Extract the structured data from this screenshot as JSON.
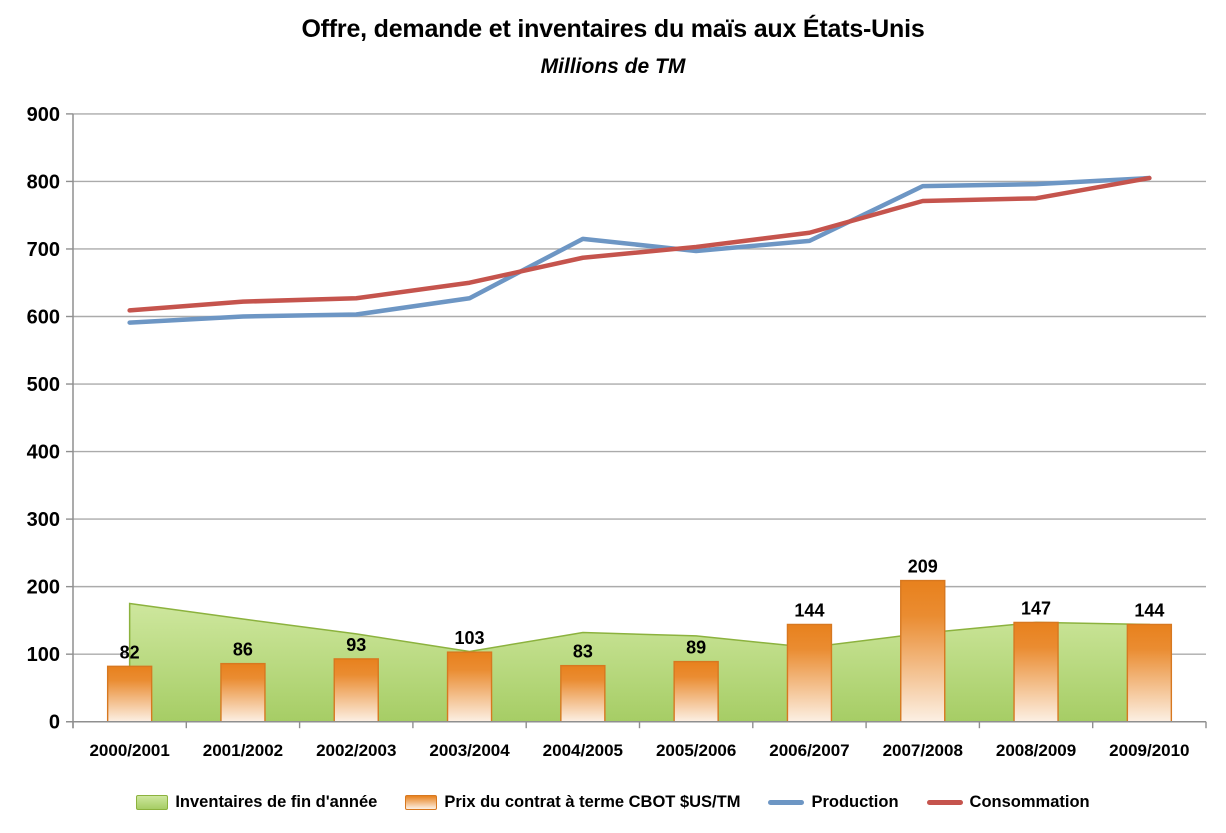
{
  "header": {
    "title": "Offre, demande et inventaires du maïs aux États-Unis",
    "subtitle": "Millions de TM"
  },
  "chart_data": {
    "type": "combo",
    "categories": [
      "2000/2001",
      "2001/2002",
      "2002/2003",
      "2003/2004",
      "2004/2005",
      "2005/2006",
      "2006/2007",
      "2007/2008",
      "2008/2009",
      "2009/2010"
    ],
    "series": [
      {
        "name": "Inventaires de fin d'année",
        "type": "area",
        "values": [
          175,
          152,
          130,
          104,
          132,
          127,
          110,
          131,
          147,
          144
        ],
        "fill_top": "#CEE79E",
        "fill_bottom": "#A6CD65",
        "border": "#8CB23E"
      },
      {
        "name": "Prix du contrat à terme CBOT $US/TM",
        "type": "bar",
        "values": [
          82,
          86,
          93,
          103,
          83,
          89,
          144,
          209,
          147,
          144
        ],
        "data_labels": true,
        "fill_top": "#E8811D",
        "fill_bottom": "#FCF0E4",
        "border": "#D77820"
      },
      {
        "name": "Production",
        "type": "line",
        "values": [
          591,
          600,
          603,
          627,
          715,
          697,
          712,
          793,
          796,
          805
        ],
        "color": "#6D96C4"
      },
      {
        "name": "Consommation",
        "type": "line",
        "values": [
          609,
          622,
          627,
          650,
          687,
          703,
          724,
          771,
          775,
          805
        ],
        "color": "#C5544D"
      }
    ],
    "ylim": [
      0,
      900
    ],
    "yticks": [
      0,
      100,
      200,
      300,
      400,
      500,
      600,
      700,
      800,
      900
    ],
    "grid": true,
    "grid_color": "#ABABAB",
    "axis_color": "#8F8F8F",
    "legend_position": "bottom"
  }
}
